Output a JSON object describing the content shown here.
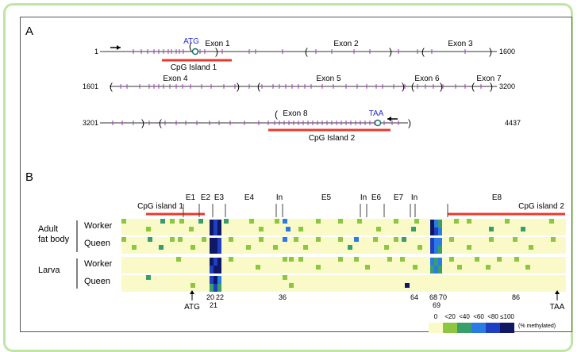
{
  "panel_a": {
    "label": "A",
    "rows": [
      {
        "start": "1",
        "end": "1600"
      },
      {
        "start": "1601",
        "end": "3200"
      },
      {
        "start": "3201",
        "end": "4437"
      }
    ],
    "exons": [
      "Exon 1",
      "Exon 2",
      "Exon 3",
      "Exon 4",
      "Exon 5",
      "Exon 6",
      "Exon 7",
      "Exon 8"
    ],
    "atg": "ATG",
    "taa": "TAA",
    "cpg1": "CpG Island 1",
    "cpg2": "CpG Island 2"
  },
  "panel_b": {
    "label": "B",
    "cpg1": "CpG island 1",
    "cpg2": "CpG island 2",
    "regions": [
      "E1",
      "E2",
      "E3",
      "E4",
      "In",
      "E5",
      "In",
      "E6",
      "E7",
      "In",
      "E8"
    ],
    "group_adult": [
      "Adult",
      "fat body"
    ],
    "group_larva": "Larva",
    "row_labels": [
      "Worker",
      "Queen",
      "Worker",
      "Queen"
    ],
    "positions": [
      "20",
      "21",
      "22",
      "36",
      "64",
      "68",
      "69",
      "70",
      "86"
    ],
    "atg": "ATG",
    "taa": "TAA",
    "legend_values": [
      "0",
      "<20",
      "<40",
      "<60",
      "<80",
      "≤100"
    ],
    "legend_unit": "(% methylated)",
    "colors": {
      "background": "#fafac8",
      "bins": [
        "#fafac8",
        "#8dc63f",
        "#3a9e6a",
        "#2a7be4",
        "#1e3fc2",
        "#101866"
      ],
      "cpg_bar": "#e8392e",
      "atg_taa": "#2b2bd6",
      "frame_border": "#bfe5a6"
    }
  }
}
